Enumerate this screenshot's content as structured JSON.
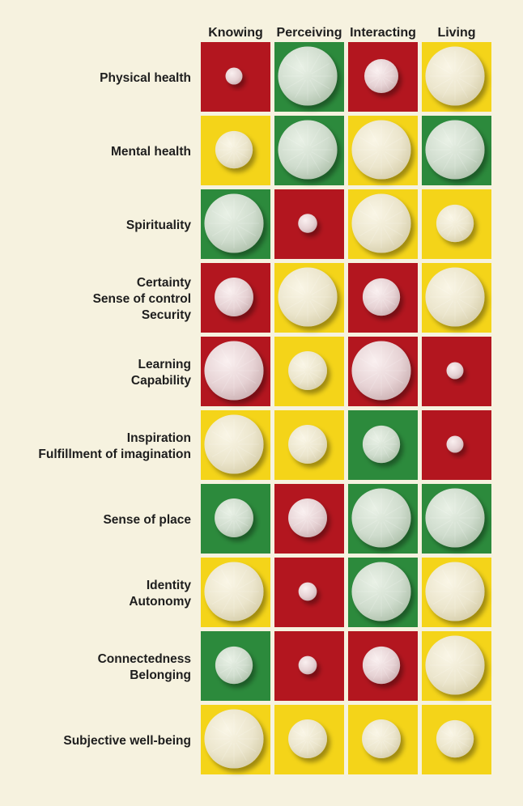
{
  "chart_data": {
    "type": "heatmap",
    "title": "",
    "columns": [
      "Knowing",
      "Perceiving",
      "Interacting",
      "Living"
    ],
    "rows": [
      {
        "label": [
          "Physical health"
        ]
      },
      {
        "label": [
          "Mental health"
        ]
      },
      {
        "label": [
          "Spirituality"
        ]
      },
      {
        "label": [
          "Certainty",
          "Sense of control",
          "Security"
        ]
      },
      {
        "label": [
          "Learning",
          "Capability"
        ]
      },
      {
        "label": [
          "Inspiration",
          "Fulfillment of imagination"
        ]
      },
      {
        "label": [
          "Sense of place"
        ]
      },
      {
        "label": [
          "Identity",
          "Autonomy"
        ]
      },
      {
        "label": [
          "Connectedness",
          "Belonging"
        ]
      },
      {
        "label": [
          "Subjective well-being"
        ]
      }
    ],
    "cell_color_legend": {
      "red": "#b3161f",
      "yellow": "#f4d419",
      "green": "#2c8a3c"
    },
    "cells": [
      [
        {
          "color": "red",
          "size": 0.25
        },
        {
          "color": "green",
          "size": 0.87
        },
        {
          "color": "red",
          "size": 0.5
        },
        {
          "color": "yellow",
          "size": 0.87
        }
      ],
      [
        {
          "color": "yellow",
          "size": 0.55
        },
        {
          "color": "green",
          "size": 0.87
        },
        {
          "color": "yellow",
          "size": 0.87
        },
        {
          "color": "green",
          "size": 0.87
        }
      ],
      [
        {
          "color": "green",
          "size": 0.87
        },
        {
          "color": "red",
          "size": 0.28
        },
        {
          "color": "yellow",
          "size": 0.87
        },
        {
          "color": "yellow",
          "size": 0.55
        }
      ],
      [
        {
          "color": "red",
          "size": 0.57
        },
        {
          "color": "yellow",
          "size": 0.87
        },
        {
          "color": "red",
          "size": 0.55
        },
        {
          "color": "yellow",
          "size": 0.87
        }
      ],
      [
        {
          "color": "red",
          "size": 0.87
        },
        {
          "color": "yellow",
          "size": 0.57
        },
        {
          "color": "red",
          "size": 0.87
        },
        {
          "color": "red",
          "size": 0.25
        }
      ],
      [
        {
          "color": "yellow",
          "size": 0.87
        },
        {
          "color": "yellow",
          "size": 0.57
        },
        {
          "color": "green",
          "size": 0.55
        },
        {
          "color": "red",
          "size": 0.25
        }
      ],
      [
        {
          "color": "green",
          "size": 0.57
        },
        {
          "color": "red",
          "size": 0.57
        },
        {
          "color": "green",
          "size": 0.87
        },
        {
          "color": "green",
          "size": 0.87
        }
      ],
      [
        {
          "color": "yellow",
          "size": 0.87
        },
        {
          "color": "red",
          "size": 0.27
        },
        {
          "color": "green",
          "size": 0.87
        },
        {
          "color": "yellow",
          "size": 0.87
        }
      ],
      [
        {
          "color": "green",
          "size": 0.55
        },
        {
          "color": "red",
          "size": 0.27
        },
        {
          "color": "red",
          "size": 0.55
        },
        {
          "color": "yellow",
          "size": 0.87
        }
      ],
      [
        {
          "color": "yellow",
          "size": 0.87
        },
        {
          "color": "yellow",
          "size": 0.57
        },
        {
          "color": "yellow",
          "size": 0.57
        },
        {
          "color": "yellow",
          "size": 0.55
        }
      ]
    ]
  }
}
